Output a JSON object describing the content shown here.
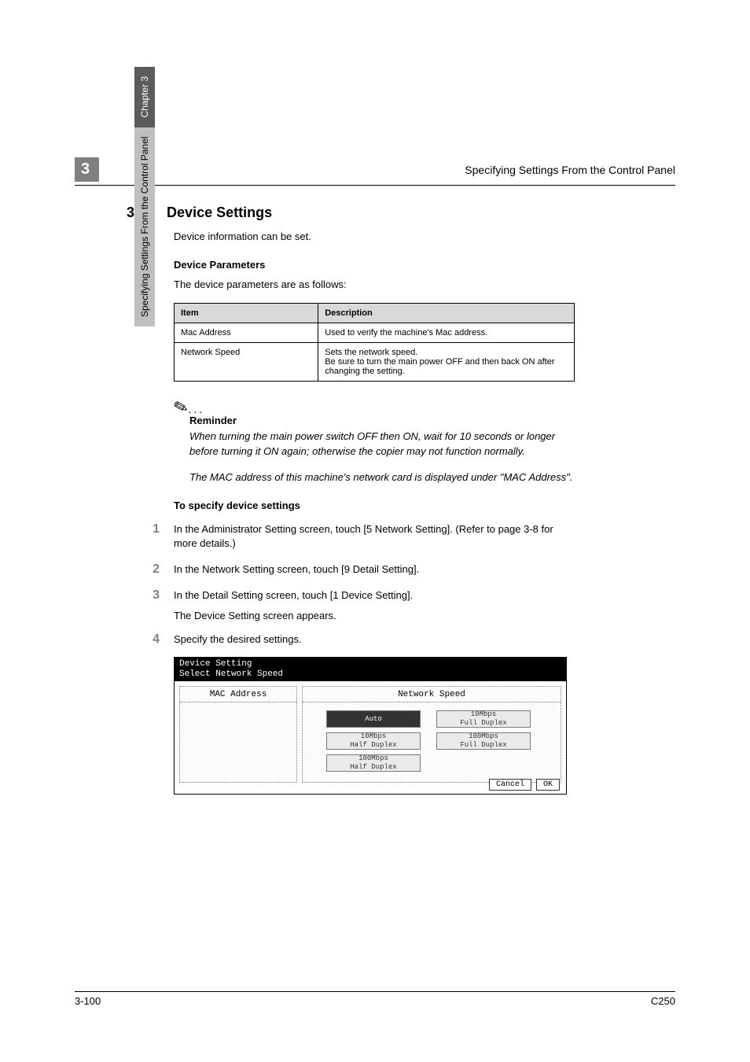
{
  "side_tab": {
    "light_text": "Specifying Settings From the Control Panel",
    "dark_text": "Chapter 3"
  },
  "header": {
    "chapter_num": "3",
    "title": "Specifying Settings From the Control Panel"
  },
  "section": {
    "num": "3.22",
    "title": "Device Settings",
    "intro": "Device information can be set.",
    "sub_heading_params": "Device Parameters",
    "params_intro": "The device parameters are as follows:",
    "table": {
      "headers": [
        "Item",
        "Description"
      ],
      "col_widths": [
        "36%",
        "64%"
      ],
      "rows": [
        [
          "Mac Address",
          "Used to verify the machine's Mac address."
        ],
        [
          "Network Speed",
          "Sets the network speed.\nBe sure to turn the main power OFF and then back ON after changing the setting."
        ]
      ]
    },
    "reminder": {
      "label": "Reminder",
      "para1": "When turning the main power switch OFF then ON, wait for 10 seconds or longer before turning it ON again; otherwise the copier may not function normally.",
      "para2": "The MAC address of this machine's network card is displayed under \"MAC Address\"."
    },
    "sub_heading_steps": "To specify device settings",
    "steps": [
      {
        "num": "1",
        "text": "In the Administrator Setting screen, touch [5 Network Setting]. (Refer to page 3-8 for more details.)"
      },
      {
        "num": "2",
        "text": "In the Network Setting screen, touch [9 Detail Setting]."
      },
      {
        "num": "3",
        "text": "In the Detail Setting screen, touch [1 Device Setting].",
        "sub": "The Device Setting screen appears."
      },
      {
        "num": "4",
        "text": "Specify the desired settings."
      }
    ]
  },
  "device_screen": {
    "title_line1": "Device Setting",
    "title_line2": "Select Network Speed",
    "left_header": "MAC Address",
    "right_header": "Network Speed",
    "buttons": {
      "auto": "Auto",
      "ten_full": "10Mbps\nFull Duplex",
      "ten_half": "10Mbps\nHalf Duplex",
      "hundred_full": "100Mbps\nFull Duplex",
      "hundred_half": "100Mbps\nHalf Duplex"
    },
    "cancel": "Cancel",
    "ok": "OK"
  },
  "footer": {
    "left": "3-100",
    "right": "C250"
  },
  "colors": {
    "badge_bg": "#808080",
    "tab_light_bg": "#bfbfbf",
    "tab_dark_bg": "#5b5b5b",
    "th_bg": "#d9d9d9",
    "step_num_color": "#808080"
  }
}
